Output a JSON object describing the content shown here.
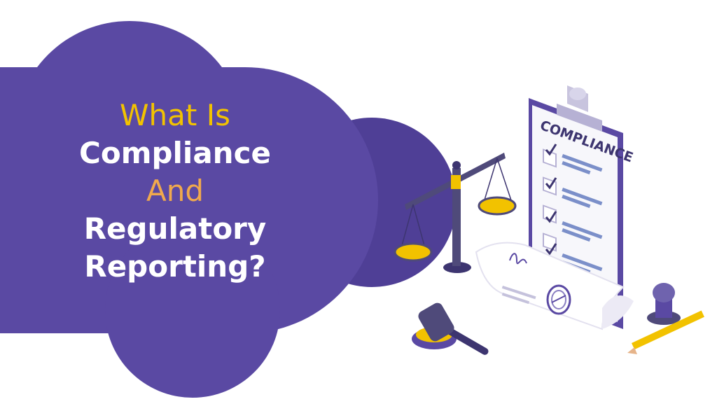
{
  "headline": {
    "line1": "What Is",
    "line2": "Compliance",
    "line3": "And",
    "line4": "Regulatory",
    "line5": "Reporting?"
  },
  "clipboard": {
    "title": "COMPLIANCE",
    "checklist_item_count": 4
  },
  "colors": {
    "primary_purple": "#5a49a3",
    "dark_purple": "#4f3f96",
    "accent_yellow": "#f2c200",
    "accent_orange": "#f0a94d",
    "text_white": "#ffffff"
  },
  "icons": [
    "scales-of-justice-icon",
    "clipboard-icon",
    "checkbox-icon",
    "document-with-signature-icon",
    "seal-stamp-icon",
    "gavel-icon",
    "rubber-stamp-icon",
    "pencil-icon"
  ]
}
